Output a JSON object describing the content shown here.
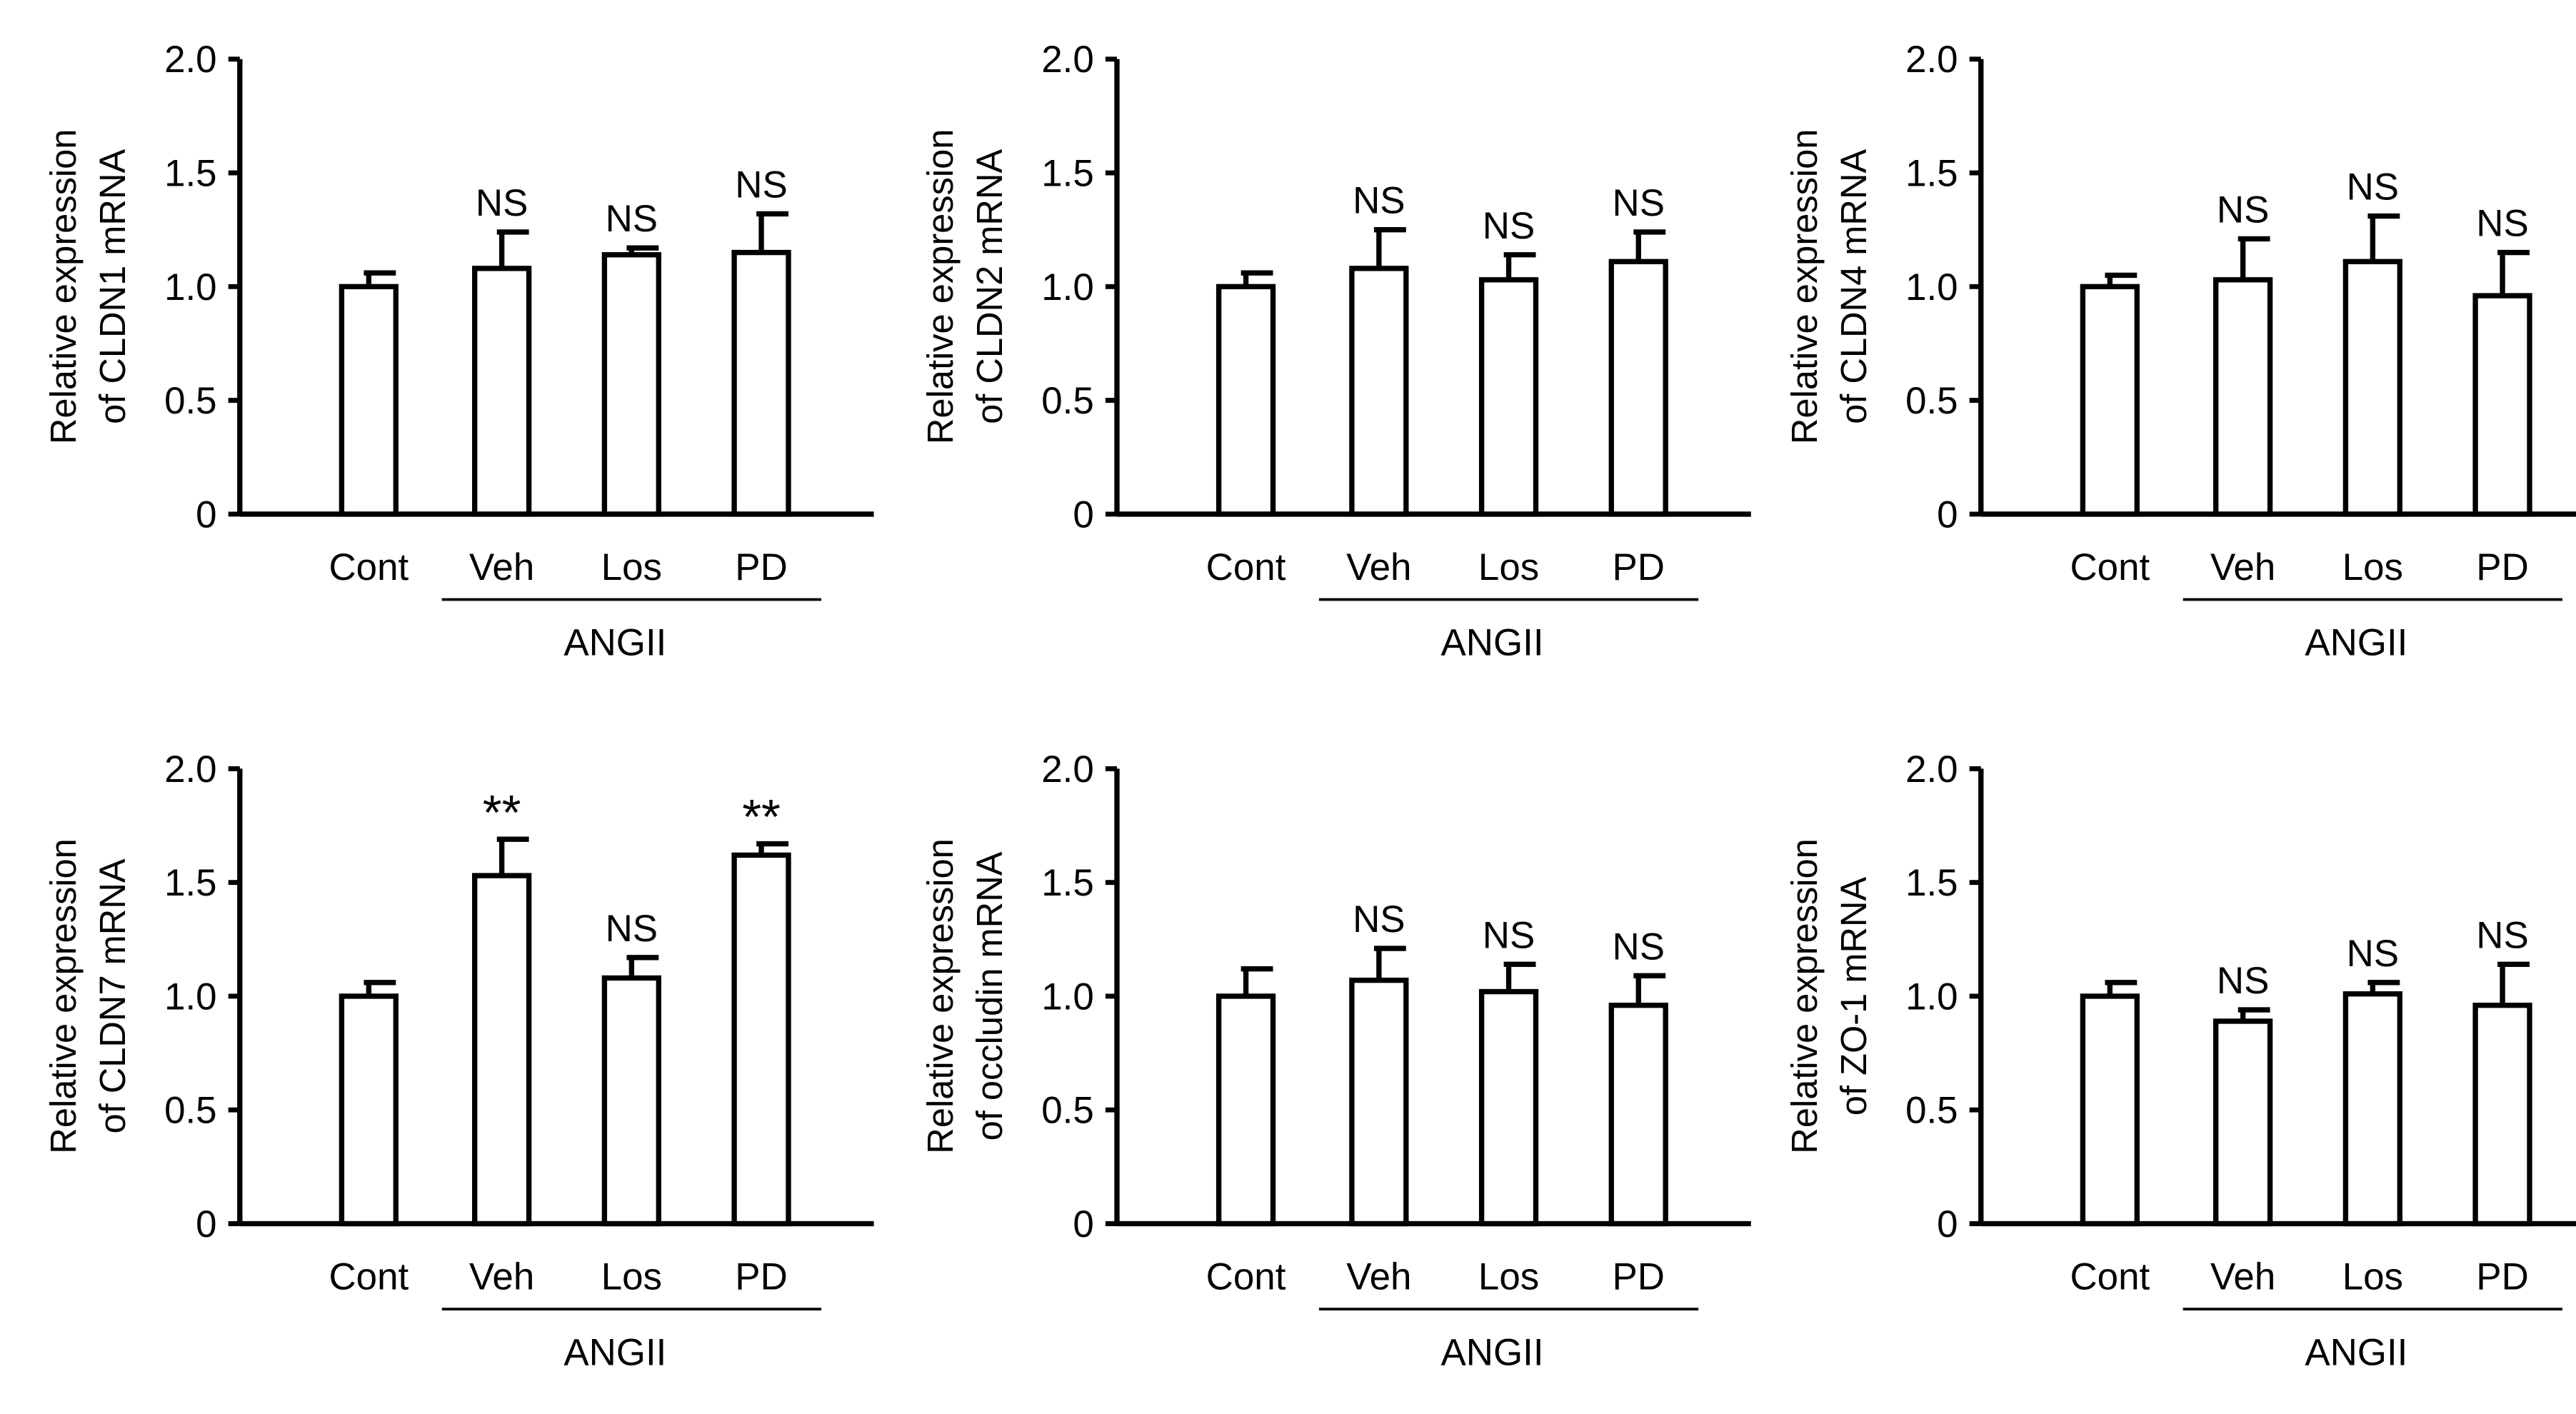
{
  "chart_data": [
    {
      "type": "bar",
      "ylabel": [
        "Relative expression",
        "of CLDN1 mRNA"
      ],
      "categories": [
        "Cont",
        "Veh",
        "Los",
        "PD"
      ],
      "group_label": "ANGII",
      "group_covers": [
        "Veh",
        "Los",
        "PD"
      ],
      "values": [
        1.0,
        1.08,
        1.14,
        1.15
      ],
      "errors": [
        0.06,
        0.16,
        0.03,
        0.17
      ],
      "significance": [
        "",
        "NS",
        "NS",
        "NS"
      ],
      "ylim": [
        0,
        2.0
      ],
      "yticks": [
        "0",
        "0.5",
        "1.0",
        "1.5",
        "2.0"
      ]
    },
    {
      "type": "bar",
      "ylabel": [
        "Relative expression",
        "of CLDN2 mRNA"
      ],
      "categories": [
        "Cont",
        "Veh",
        "Los",
        "PD"
      ],
      "group_label": "ANGII",
      "group_covers": [
        "Veh",
        "Los",
        "PD"
      ],
      "values": [
        1.0,
        1.08,
        1.03,
        1.11
      ],
      "errors": [
        0.06,
        0.17,
        0.11,
        0.13
      ],
      "significance": [
        "",
        "NS",
        "NS",
        "NS"
      ],
      "ylim": [
        0,
        2.0
      ],
      "yticks": [
        "0",
        "0.5",
        "1.0",
        "1.5",
        "2.0"
      ]
    },
    {
      "type": "bar",
      "ylabel": [
        "Relative expression",
        "of CLDN4 mRNA"
      ],
      "categories": [
        "Cont",
        "Veh",
        "Los",
        "PD"
      ],
      "group_label": "ANGII",
      "group_covers": [
        "Veh",
        "Los",
        "PD"
      ],
      "values": [
        1.0,
        1.03,
        1.11,
        0.96
      ],
      "errors": [
        0.05,
        0.18,
        0.2,
        0.19
      ],
      "significance": [
        "",
        "NS",
        "NS",
        "NS"
      ],
      "ylim": [
        0,
        2.0
      ],
      "yticks": [
        "0",
        "0.5",
        "1.0",
        "1.5",
        "2.0"
      ]
    },
    {
      "type": "bar",
      "ylabel": [
        "Relative expression",
        "of CLDN7 mRNA"
      ],
      "categories": [
        "Cont",
        "Veh",
        "Los",
        "PD"
      ],
      "group_label": "ANGII",
      "group_covers": [
        "Veh",
        "Los",
        "PD"
      ],
      "values": [
        1.0,
        1.53,
        1.08,
        1.62
      ],
      "errors": [
        0.06,
        0.16,
        0.09,
        0.05
      ],
      "significance": [
        "",
        "**",
        "NS",
        "**"
      ],
      "ylim": [
        0,
        2.0
      ],
      "yticks": [
        "0",
        "0.5",
        "1.0",
        "1.5",
        "2.0"
      ]
    },
    {
      "type": "bar",
      "ylabel": [
        "Relative expression",
        "of occludin mRNA"
      ],
      "categories": [
        "Cont",
        "Veh",
        "Los",
        "PD"
      ],
      "group_label": "ANGII",
      "group_covers": [
        "Veh",
        "Los",
        "PD"
      ],
      "values": [
        1.0,
        1.07,
        1.02,
        0.96
      ],
      "errors": [
        0.12,
        0.14,
        0.12,
        0.13
      ],
      "significance": [
        "",
        "NS",
        "NS",
        "NS"
      ],
      "ylim": [
        0,
        2.0
      ],
      "yticks": [
        "0",
        "0.5",
        "1.0",
        "1.5",
        "2.0"
      ]
    },
    {
      "type": "bar",
      "ylabel": [
        "Relative expression",
        "of ZO-1 mRNA"
      ],
      "categories": [
        "Cont",
        "Veh",
        "Los",
        "PD"
      ],
      "group_label": "ANGII",
      "group_covers": [
        "Veh",
        "Los",
        "PD"
      ],
      "values": [
        1.0,
        0.89,
        1.01,
        0.96
      ],
      "errors": [
        0.06,
        0.05,
        0.05,
        0.18
      ],
      "significance": [
        "",
        "NS",
        "NS",
        "NS"
      ],
      "ylim": [
        0,
        2.0
      ],
      "yticks": [
        "0",
        "0.5",
        "1.0",
        "1.5",
        "2.0"
      ]
    }
  ]
}
